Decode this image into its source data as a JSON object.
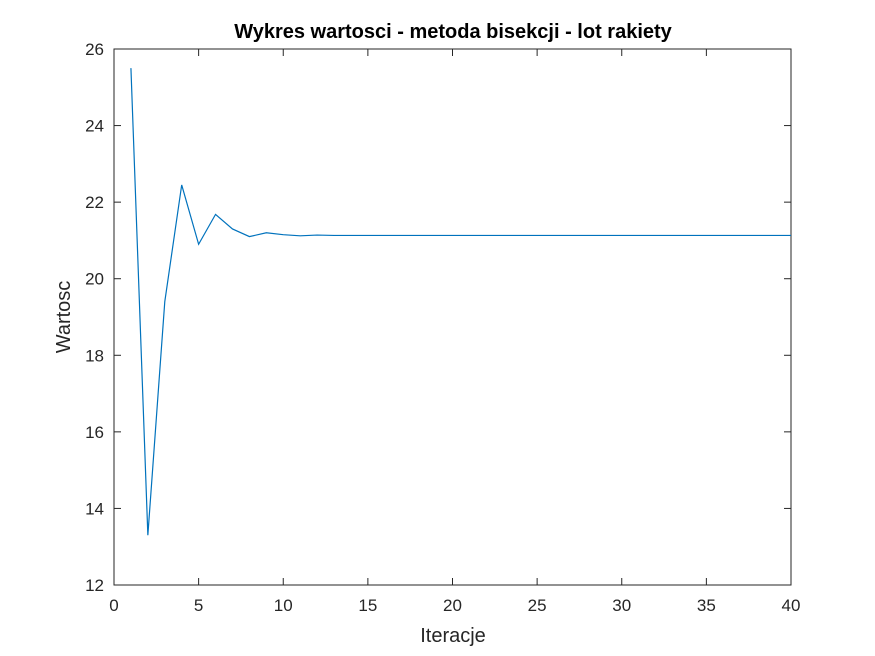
{
  "chart_data": {
    "type": "line",
    "title": "Wykres wartosci - metoda bisekcji - lot rakiety",
    "xlabel": "Iteracje",
    "ylabel": "Wartosc",
    "xlim": [
      0,
      40
    ],
    "ylim": [
      12,
      26
    ],
    "xticks": [
      0,
      5,
      10,
      15,
      20,
      25,
      30,
      35,
      40
    ],
    "yticks": [
      12,
      14,
      16,
      18,
      20,
      22,
      24,
      26
    ],
    "grid": false,
    "legend": "none",
    "line_color": "#0072bd",
    "axis_color": "#262626",
    "series": [
      {
        "x": [
          1,
          2,
          3,
          4,
          5,
          6,
          7,
          8,
          9,
          10,
          11,
          12,
          13,
          14,
          15,
          16,
          17,
          18,
          19,
          20,
          21,
          22,
          23,
          24,
          25,
          26,
          27,
          28,
          29,
          30,
          31,
          32,
          33,
          34,
          35,
          36,
          37,
          38,
          39,
          40
        ],
        "values": [
          25.5,
          13.3,
          19.4,
          22.45,
          20.9,
          21.68,
          21.3,
          21.1,
          21.2,
          21.15,
          21.12,
          21.14,
          21.13,
          21.13,
          21.13,
          21.13,
          21.13,
          21.13,
          21.13,
          21.13,
          21.13,
          21.13,
          21.13,
          21.13,
          21.13,
          21.13,
          21.13,
          21.13,
          21.13,
          21.13,
          21.13,
          21.13,
          21.13,
          21.13,
          21.13,
          21.13,
          21.13,
          21.13,
          21.13,
          21.13
        ]
      }
    ]
  }
}
